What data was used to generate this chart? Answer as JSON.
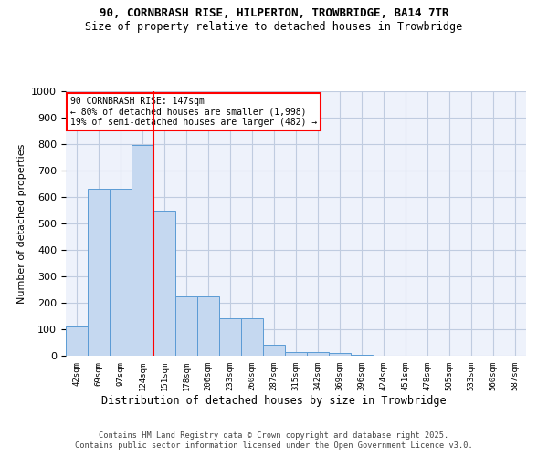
{
  "title_line1": "90, CORNBRASH RISE, HILPERTON, TROWBRIDGE, BA14 7TR",
  "title_line2": "Size of property relative to detached houses in Trowbridge",
  "xlabel": "Distribution of detached houses by size in Trowbridge",
  "ylabel": "Number of detached properties",
  "bar_values": [
    110,
    630,
    630,
    795,
    548,
    225,
    225,
    140,
    140,
    42,
    15,
    15,
    10,
    5,
    0,
    0,
    0,
    0,
    0,
    0,
    0
  ],
  "categories": [
    "42sqm",
    "69sqm",
    "97sqm",
    "124sqm",
    "151sqm",
    "178sqm",
    "206sqm",
    "233sqm",
    "260sqm",
    "287sqm",
    "315sqm",
    "342sqm",
    "369sqm",
    "396sqm",
    "424sqm",
    "451sqm",
    "478sqm",
    "505sqm",
    "533sqm",
    "560sqm",
    "587sqm"
  ],
  "bar_color": "#c5d8f0",
  "bar_edge_color": "#5b9bd5",
  "vline_x": 4,
  "vline_color": "red",
  "ylim": [
    0,
    1000
  ],
  "yticks": [
    0,
    100,
    200,
    300,
    400,
    500,
    600,
    700,
    800,
    900,
    1000
  ],
  "annotation_text": "90 CORNBRASH RISE: 147sqm\n← 80% of detached houses are smaller (1,998)\n19% of semi-detached houses are larger (482) →",
  "annotation_box_color": "white",
  "annotation_border_color": "red",
  "footer_line1": "Contains HM Land Registry data © Crown copyright and database right 2025.",
  "footer_line2": "Contains public sector information licensed under the Open Government Licence v3.0.",
  "bg_color": "#eef2fb",
  "grid_color": "#c0cce0",
  "plot_bg": "#eef2fb"
}
